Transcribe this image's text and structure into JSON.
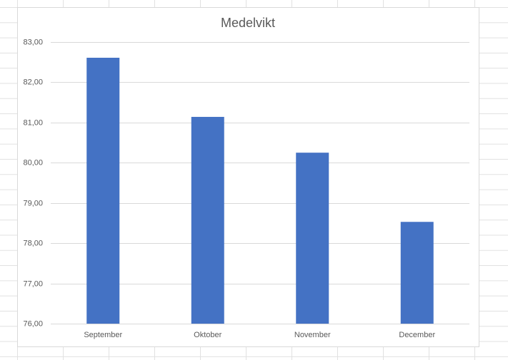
{
  "chart_data": {
    "type": "bar",
    "title": "Medelvikt",
    "categories": [
      "September",
      "Oktober",
      "November",
      "December"
    ],
    "values": [
      82.61,
      81.14,
      80.25,
      78.53
    ],
    "color": "#4472c4",
    "ylim": [
      76,
      83
    ],
    "yticks": [
      {
        "value": 76,
        "label": "76,00"
      },
      {
        "value": 77,
        "label": "77,00"
      },
      {
        "value": 78,
        "label": "78,00"
      },
      {
        "value": 79,
        "label": "79,00"
      },
      {
        "value": 80,
        "label": "80,00"
      },
      {
        "value": 81,
        "label": "81,00"
      },
      {
        "value": 82,
        "label": "82,00"
      },
      {
        "value": 83,
        "label": "83,00"
      }
    ],
    "grid": true
  }
}
